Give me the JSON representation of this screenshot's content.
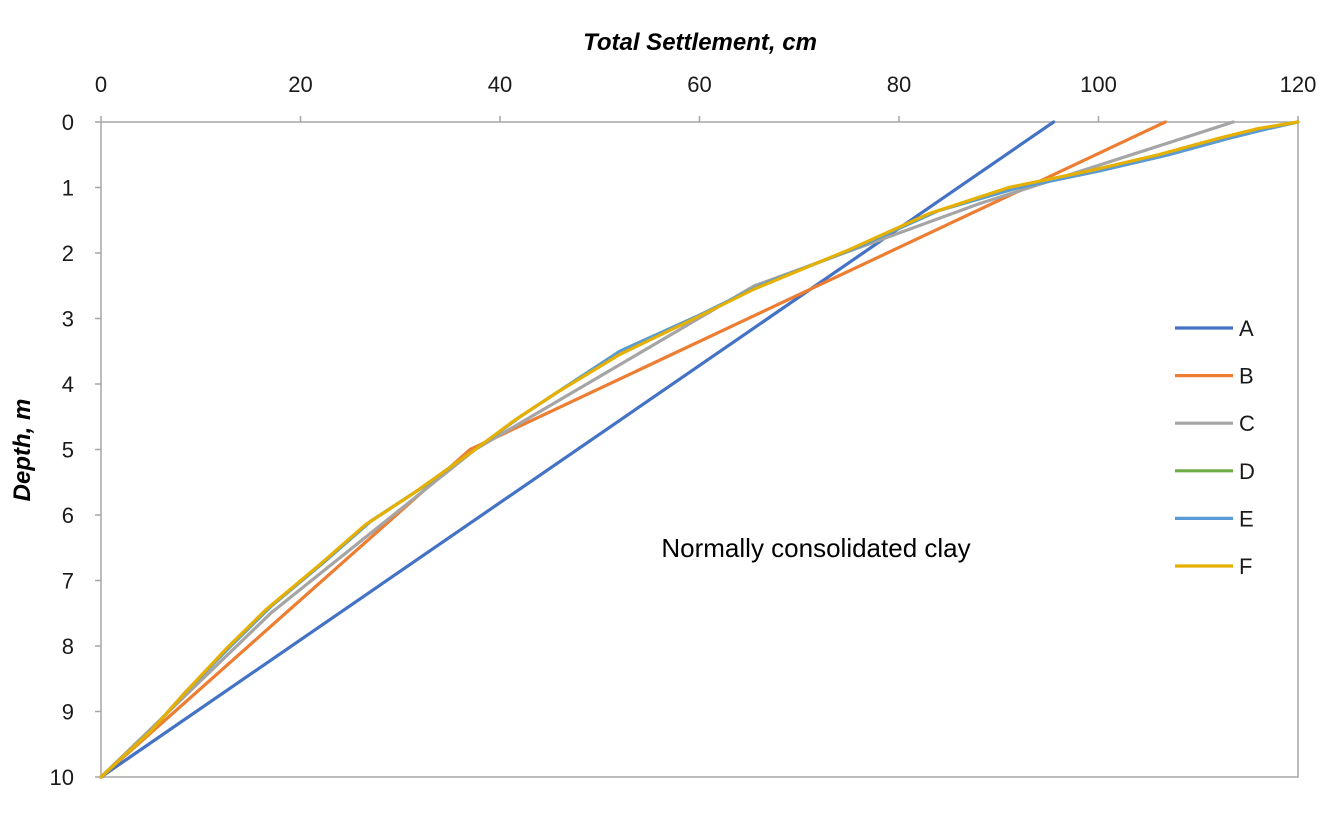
{
  "chart_data": {
    "type": "line",
    "title": "",
    "xlabel": "Total Settlement, cm",
    "ylabel": "Depth, m",
    "xlim": [
      0,
      120
    ],
    "ylim": [
      0,
      10
    ],
    "x_axis_position": "top",
    "y_axis_reversed": true,
    "x_ticks": [
      0,
      20,
      40,
      60,
      80,
      100,
      120
    ],
    "y_ticks": [
      0,
      1,
      2,
      3,
      4,
      5,
      6,
      7,
      8,
      9,
      10
    ],
    "grid": false,
    "legend_position": "right",
    "annotation": "Normally consolidated clay",
    "series": [
      {
        "name": "A",
        "color": "#4472C4",
        "points": [
          [
            95.5,
            0
          ],
          [
            0,
            10
          ]
        ]
      },
      {
        "name": "B",
        "color": "#ED7D31",
        "points": [
          [
            106.7,
            0
          ],
          [
            37,
            5
          ],
          [
            0,
            10
          ]
        ]
      },
      {
        "name": "C",
        "color": "#A5A5A5",
        "points": [
          [
            113.5,
            0
          ],
          [
            88,
            1.25
          ],
          [
            65.5,
            2.5
          ],
          [
            37.5,
            5
          ],
          [
            17,
            7.5
          ],
          [
            0,
            10
          ]
        ]
      },
      {
        "name": "D",
        "color": "#70AD47",
        "points": [
          [
            120,
            0
          ],
          [
            117,
            0.1
          ],
          [
            113,
            0.25
          ],
          [
            107,
            0.5
          ],
          [
            100,
            0.75
          ],
          [
            92,
            1
          ],
          [
            84,
            1.35
          ],
          [
            76,
            1.9
          ],
          [
            66,
            2.5
          ],
          [
            60,
            2.95
          ],
          [
            52,
            3.5
          ],
          [
            46,
            4.1
          ],
          [
            42,
            4.5
          ],
          [
            37.5,
            5
          ],
          [
            32,
            5.6
          ],
          [
            27,
            6.1
          ],
          [
            22.5,
            6.7
          ],
          [
            17,
            7.4
          ],
          [
            13,
            8
          ],
          [
            8.5,
            8.7
          ],
          [
            5,
            9.3
          ],
          [
            2.5,
            9.65
          ],
          [
            0,
            10
          ]
        ]
      },
      {
        "name": "E",
        "color": "#5B9BD5",
        "points": [
          [
            120,
            0
          ],
          [
            117,
            0.1
          ],
          [
            113,
            0.25
          ],
          [
            107,
            0.5
          ],
          [
            100,
            0.75
          ],
          [
            92,
            1
          ],
          [
            84,
            1.35
          ],
          [
            76,
            1.9
          ],
          [
            66,
            2.5
          ],
          [
            60,
            2.95
          ],
          [
            52,
            3.5
          ],
          [
            46,
            4.1
          ],
          [
            42,
            4.5
          ],
          [
            37.5,
            5
          ],
          [
            32,
            5.6
          ],
          [
            27,
            6.1
          ],
          [
            22.5,
            6.7
          ],
          [
            17,
            7.4
          ],
          [
            13,
            8
          ],
          [
            8.5,
            8.7
          ],
          [
            5,
            9.3
          ],
          [
            2.5,
            9.65
          ],
          [
            0,
            10
          ]
        ]
      },
      {
        "name": "F",
        "color": "#E6B000",
        "points": [
          [
            120,
            0
          ],
          [
            116,
            0.1
          ],
          [
            112,
            0.25
          ],
          [
            106,
            0.5
          ],
          [
            99,
            0.75
          ],
          [
            91,
            1
          ],
          [
            83,
            1.4
          ],
          [
            75,
            1.95
          ],
          [
            65.5,
            2.55
          ],
          [
            59.5,
            3
          ],
          [
            52,
            3.55
          ],
          [
            45.5,
            4.15
          ],
          [
            41.5,
            4.55
          ],
          [
            37.5,
            5
          ],
          [
            31.5,
            5.65
          ],
          [
            26.5,
            6.15
          ],
          [
            22,
            6.75
          ],
          [
            16.5,
            7.45
          ],
          [
            12.5,
            8.05
          ],
          [
            8.5,
            8.7
          ],
          [
            5,
            9.3
          ],
          [
            2.5,
            9.65
          ],
          [
            0,
            10
          ]
        ]
      }
    ]
  }
}
